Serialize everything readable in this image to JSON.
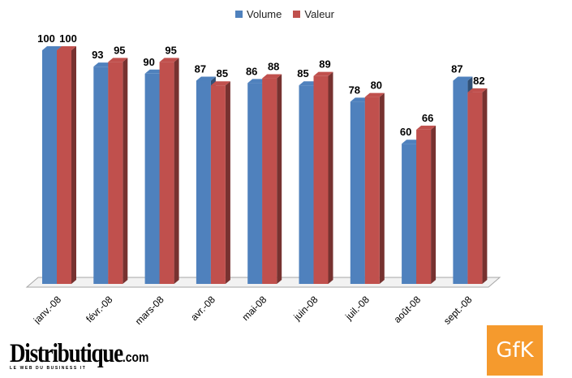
{
  "chart_data": {
    "type": "bar",
    "title": "",
    "categories": [
      "janv.-08",
      "févr.-08",
      "mars-08",
      "avr.-08",
      "mai-08",
      "juin-08",
      "juil.-08",
      "août-08",
      "sept.-08"
    ],
    "series": [
      {
        "name": "Volume",
        "color": "#4f81bd",
        "values": [
          100,
          93,
          90,
          87,
          86,
          85,
          78,
          60,
          87
        ]
      },
      {
        "name": "Valeur",
        "color": "#c0504d",
        "values": [
          100,
          95,
          95,
          85,
          88,
          89,
          80,
          66,
          82
        ]
      }
    ],
    "ylim": [
      0,
      100
    ],
    "legend": "top",
    "grid": false,
    "data_labels": true,
    "style": "3d-clustered-column"
  },
  "branding": {
    "publisher_name": "Distributique",
    "publisher_suffix": ".com",
    "publisher_tagline": "LE WEB DU BUSINESS IT",
    "source_logo": "GfK",
    "source_color": "#f59a2d"
  }
}
